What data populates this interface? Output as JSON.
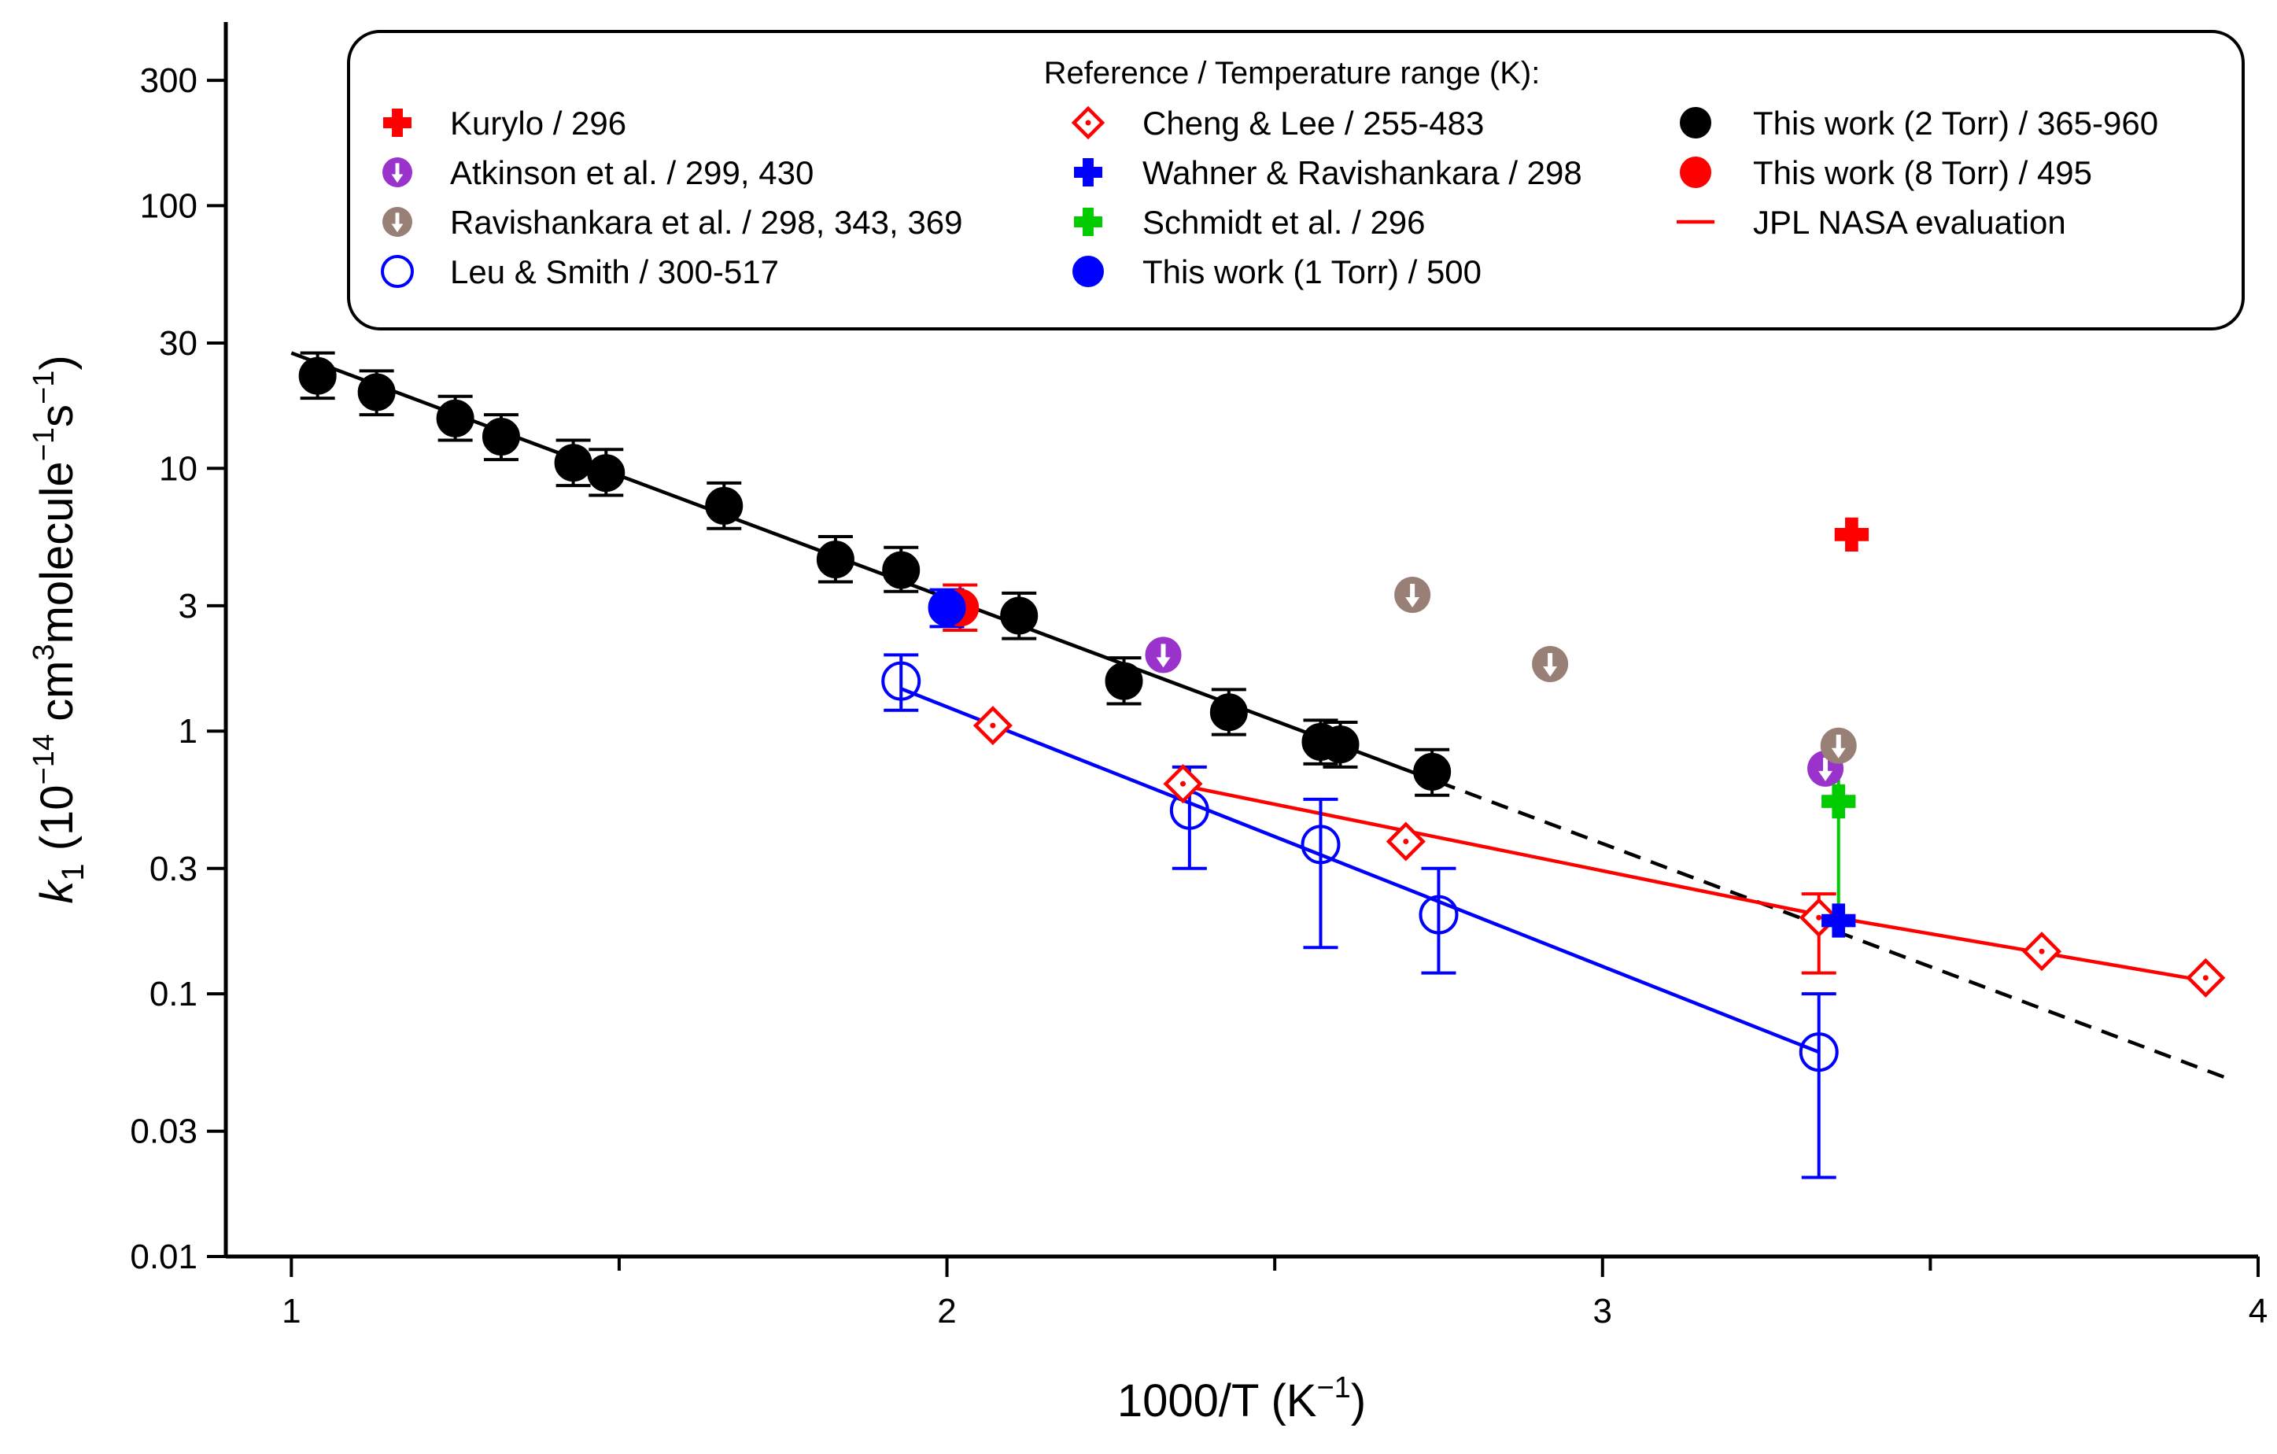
{
  "chart_data": {
    "type": "scatter",
    "title": "",
    "xlabel": {
      "base": "1000/T (K",
      "sup": "−1",
      "close": ")"
    },
    "ylabel": {
      "k": "k",
      "sub": "1",
      "a": " (10",
      "s1": "−14",
      "b": " cm",
      "s2": "3",
      "c": "molecule",
      "s3": "−1",
      "d": "s",
      "s4": "−1",
      "e": ")"
    },
    "xlim": [
      0.9,
      4.0
    ],
    "ylim": [
      0.01,
      500
    ],
    "y_scale": "log",
    "x_ticks": [
      {
        "value": 1,
        "label": "1"
      },
      {
        "value": 2,
        "label": "2"
      },
      {
        "value": 3,
        "label": "3"
      },
      {
        "value": 4,
        "label": "4"
      }
    ],
    "x_minor_ticks": [
      1.5,
      2.5,
      3.5
    ],
    "y_ticks": [
      {
        "value": 0.01,
        "label": "0.01"
      },
      {
        "value": 0.03,
        "label": "0.03"
      },
      {
        "value": 0.1,
        "label": "0.1"
      },
      {
        "value": 0.3,
        "label": "0.3"
      },
      {
        "value": 1,
        "label": "1"
      },
      {
        "value": 3,
        "label": "3"
      },
      {
        "value": 10,
        "label": "10"
      },
      {
        "value": 30,
        "label": "30"
      },
      {
        "value": 100,
        "label": "100"
      },
      {
        "value": 300,
        "label": "300"
      }
    ],
    "legend": {
      "title": "Reference / Temperature range (K):",
      "position": "top",
      "entries": [
        {
          "label": "Kurylo / 296",
          "series": "kurylo"
        },
        {
          "label": "Atkinson et al. / 299, 430",
          "series": "atkinson"
        },
        {
          "label": "Ravishankara et al. / 298, 343, 369",
          "series": "ravishankara"
        },
        {
          "label": "Leu & Smith / 300-517",
          "series": "leu"
        },
        {
          "label": "Cheng & Lee / 255-483",
          "series": "cheng"
        },
        {
          "label": "Wahner & Ravishankara / 298",
          "series": "wahner"
        },
        {
          "label": "Schmidt et al. / 296",
          "series": "schmidt"
        },
        {
          "label": "This work (1 Torr) / 500",
          "series": "tw1"
        },
        {
          "label": "This work (2 Torr) / 365-960",
          "series": "tw2"
        },
        {
          "label": "This work (8 Torr) / 495",
          "series": "tw8"
        },
        {
          "label": "JPL NASA evaluation",
          "series": "jpl"
        }
      ]
    },
    "series": [
      {
        "key": "tw2",
        "name": "This work (2 Torr)",
        "marker": "filled-circle",
        "color": "#000000",
        "points": [
          {
            "x": 1.04,
            "y": 22.5,
            "lo": 18.5,
            "hi": 27.5
          },
          {
            "x": 1.13,
            "y": 19.5,
            "lo": 16.0,
            "hi": 23.5
          },
          {
            "x": 1.25,
            "y": 15.5,
            "lo": 12.8,
            "hi": 18.8
          },
          {
            "x": 1.32,
            "y": 13.2,
            "lo": 10.8,
            "hi": 16.0
          },
          {
            "x": 1.43,
            "y": 10.5,
            "lo": 8.6,
            "hi": 12.8
          },
          {
            "x": 1.48,
            "y": 9.6,
            "lo": 7.9,
            "hi": 11.8
          },
          {
            "x": 1.66,
            "y": 7.2,
            "lo": 5.9,
            "hi": 8.8
          },
          {
            "x": 1.83,
            "y": 4.5,
            "lo": 3.7,
            "hi": 5.5
          },
          {
            "x": 1.93,
            "y": 4.1,
            "lo": 3.4,
            "hi": 5.0
          },
          {
            "x": 2.11,
            "y": 2.75,
            "lo": 2.25,
            "hi": 3.35
          },
          {
            "x": 2.27,
            "y": 1.55,
            "lo": 1.27,
            "hi": 1.9
          },
          {
            "x": 2.43,
            "y": 1.18,
            "lo": 0.97,
            "hi": 1.44
          },
          {
            "x": 2.57,
            "y": 0.91,
            "lo": 0.75,
            "hi": 1.1
          },
          {
            "x": 2.6,
            "y": 0.89,
            "lo": 0.73,
            "hi": 1.08
          },
          {
            "x": 2.74,
            "y": 0.7,
            "lo": 0.57,
            "hi": 0.85
          }
        ]
      },
      {
        "key": "tw8",
        "name": "This work (8 Torr)",
        "marker": "filled-circle",
        "color": "#ff0000",
        "points": [
          {
            "x": 2.02,
            "y": 2.95,
            "lo": 2.42,
            "hi": 3.6
          }
        ]
      },
      {
        "key": "tw1",
        "name": "This work (1 Torr)",
        "marker": "filled-circle",
        "color": "#0000ff",
        "points": [
          {
            "x": 2.0,
            "y": 2.95,
            "lo": 2.5,
            "hi": 3.45
          }
        ]
      },
      {
        "key": "leu",
        "name": "Leu & Smith",
        "marker": "open-circle",
        "color": "#0000ff",
        "points": [
          {
            "x": 1.93,
            "y": 1.55,
            "lo": 1.2,
            "hi": 1.95
          },
          {
            "x": 2.37,
            "y": 0.5,
            "lo": 0.3,
            "hi": 0.73
          },
          {
            "x": 2.57,
            "y": 0.37,
            "lo": 0.15,
            "hi": 0.55
          },
          {
            "x": 2.75,
            "y": 0.2,
            "lo": 0.12,
            "hi": 0.3
          },
          {
            "x": 3.33,
            "y": 0.06,
            "lo": 0.02,
            "hi": 0.1
          }
        ]
      },
      {
        "key": "cheng",
        "name": "Cheng & Lee",
        "marker": "open-diamond",
        "color": "#ff0000",
        "points": [
          {
            "x": 2.07,
            "y": 1.05
          },
          {
            "x": 2.36,
            "y": 0.63
          },
          {
            "x": 2.7,
            "y": 0.38
          },
          {
            "x": 3.33,
            "y": 0.195,
            "lo": 0.12,
            "hi": 0.24
          },
          {
            "x": 3.67,
            "y": 0.145
          },
          {
            "x": 3.92,
            "y": 0.115
          }
        ]
      },
      {
        "key": "atkinson",
        "name": "Atkinson et al.",
        "marker": "arrow-circle",
        "color": "#9933cc",
        "points": [
          {
            "x": 2.33,
            "y": 1.95
          },
          {
            "x": 3.34,
            "y": 0.72
          }
        ]
      },
      {
        "key": "ravishankara",
        "name": "Ravishankara et al.",
        "marker": "arrow-circle",
        "color": "#998077",
        "points": [
          {
            "x": 2.71,
            "y": 3.3
          },
          {
            "x": 2.92,
            "y": 1.8
          },
          {
            "x": 3.36,
            "y": 0.88
          }
        ]
      },
      {
        "key": "kurylo",
        "name": "Kurylo",
        "marker": "cross",
        "color": "#ff0000",
        "points": [
          {
            "x": 3.38,
            "y": 5.6
          }
        ]
      },
      {
        "key": "wahner",
        "name": "Wahner & Ravishankara",
        "marker": "cross",
        "color": "#0000ff",
        "points": [
          {
            "x": 3.36,
            "y": 0.19
          }
        ]
      },
      {
        "key": "schmidt",
        "name": "Schmidt et al.",
        "marker": "cross",
        "color": "#00cc00",
        "points": [
          {
            "x": 3.36,
            "y": 0.54,
            "lo": 0.2,
            "hi": 0.88
          }
        ]
      }
    ],
    "lines": [
      {
        "name": "black fit",
        "color": "#000000",
        "dash": "none",
        "points": [
          [
            1.0,
            27.5
          ],
          [
            2.75,
            0.64
          ]
        ]
      },
      {
        "name": "black extrapolation",
        "color": "#000000",
        "dash": "dashed",
        "points": [
          [
            2.75,
            0.64
          ],
          [
            3.95,
            0.048
          ]
        ]
      },
      {
        "name": "blue fit",
        "color": "#0000ff",
        "dash": "none",
        "points": [
          [
            1.93,
            1.45
          ],
          [
            3.33,
            0.06
          ]
        ]
      },
      {
        "name": "JPL NASA evaluation",
        "color": "#ff0000",
        "dash": "none",
        "points": [
          [
            2.36,
            0.62
          ],
          [
            3.33,
            0.2
          ],
          [
            3.92,
            0.112
          ]
        ]
      }
    ]
  }
}
